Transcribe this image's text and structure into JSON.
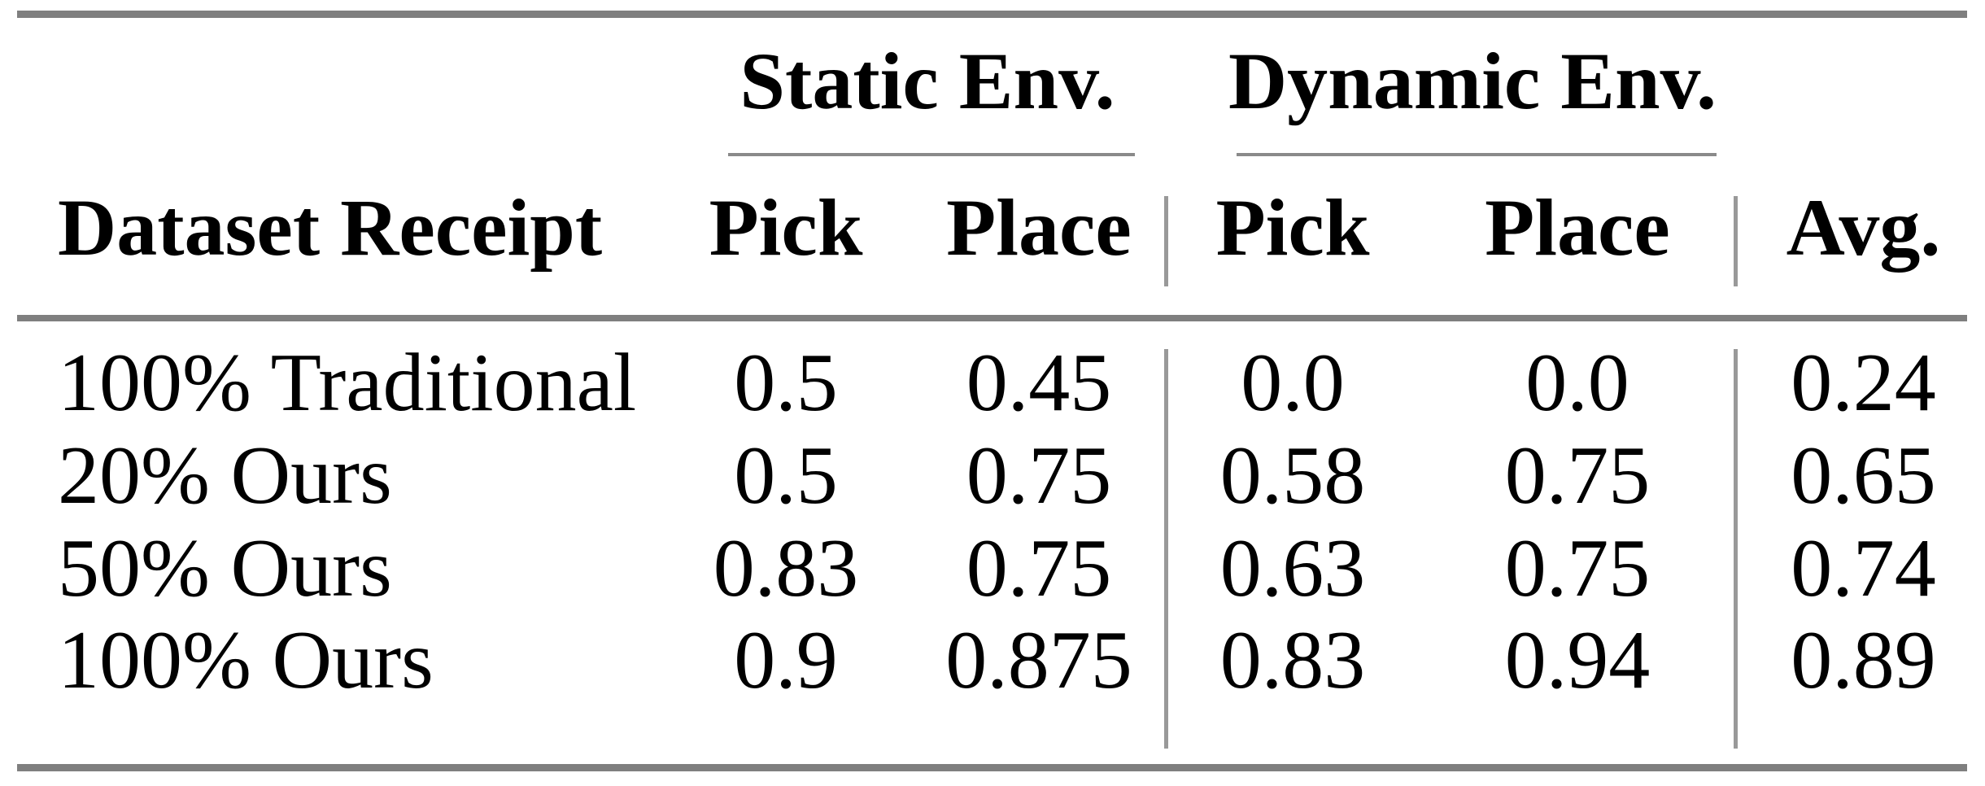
{
  "table": {
    "groups": [
      {
        "label": "Static Env."
      },
      {
        "label": "Dynamic Env."
      }
    ],
    "columns": [
      "Dataset Receipt",
      "Pick",
      "Place",
      "Pick",
      "Place",
      "Avg."
    ],
    "rows": [
      {
        "cells": [
          "100% Traditional",
          "0.5",
          "0.45",
          "0.0",
          "0.0",
          "0.24"
        ]
      },
      {
        "cells": [
          "20% Ours",
          "0.5",
          "0.75",
          "0.58",
          "0.75",
          "0.65"
        ]
      },
      {
        "cells": [
          "50% Ours",
          "0.83",
          "0.75",
          "0.63",
          "0.75",
          "0.74"
        ]
      },
      {
        "cells": [
          "100% Ours",
          "0.9",
          "0.875",
          "0.83",
          "0.94",
          "0.89"
        ]
      }
    ],
    "colors": {
      "background": "#ffffff",
      "text": "#000000",
      "rule": "#7f7f7f",
      "cmidrule": "#8a8a8a",
      "vbar": "#999999"
    }
  }
}
